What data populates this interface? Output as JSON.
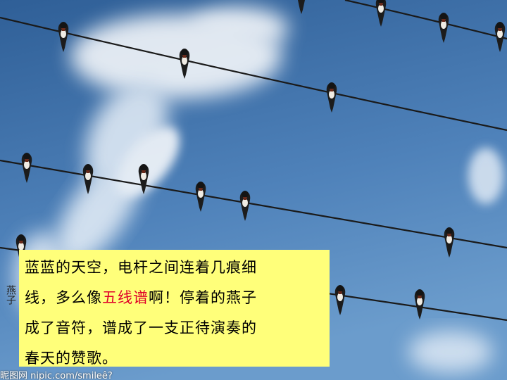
{
  "photo": {
    "subject": "swallows-on-power-lines",
    "colors": {
      "sky_top": "#2f5f97",
      "sky_bottom": "#6b9ccc",
      "cloud": "#ffffff",
      "wire": "#1a1a1a",
      "bird": "#1c1c1c"
    }
  },
  "caption": {
    "line1": "蓝蓝的天空，电杆之间连着几痕细",
    "line2_pre": "线，多么像",
    "line2_hl": "五线谱",
    "line2_post": "啊！停着的燕子",
    "line3": "成了音符，谱成了一支正待演奏的",
    "line4": "春天的赞歌。",
    "highlight_color": "#e0002a",
    "background": "#ffff7a"
  },
  "watermark": {
    "text": "昵图网 nipic.com/smileê?"
  },
  "sidemark": {
    "text": "燕子"
  }
}
